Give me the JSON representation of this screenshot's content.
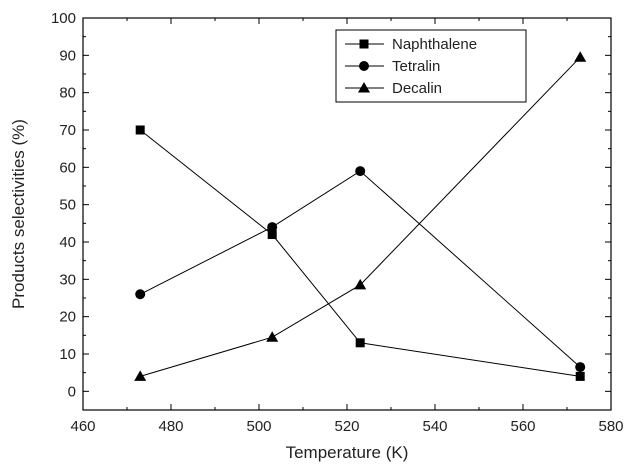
{
  "chart_data": {
    "type": "line",
    "title": "",
    "xlabel": "Temperature (K)",
    "ylabel": "Products selectivities (%)",
    "xlim": [
      460,
      580
    ],
    "ylim": [
      -5,
      100
    ],
    "x_ticks": [
      460,
      480,
      500,
      520,
      540,
      560,
      580
    ],
    "y_ticks": [
      0,
      10,
      20,
      30,
      40,
      50,
      60,
      70,
      80,
      90,
      100
    ],
    "x_tick_labels": [
      "460",
      "480",
      "500",
      "520",
      "540",
      "560",
      "580"
    ],
    "y_tick_labels": [
      "0",
      "10",
      "20",
      "30",
      "40",
      "50",
      "60",
      "70",
      "80",
      "90",
      "100"
    ],
    "x": [
      473,
      503,
      523,
      573
    ],
    "series": [
      {
        "name": "Naphthalene",
        "marker": "square",
        "values": [
          70,
          42,
          13,
          4
        ]
      },
      {
        "name": "Tetralin",
        "marker": "circle",
        "values": [
          26,
          44,
          59,
          6.5
        ]
      },
      {
        "name": "Decalin",
        "marker": "triangle",
        "values": [
          4,
          14.5,
          28.5,
          89.5
        ]
      }
    ],
    "grid": false,
    "legend_position": "top-right",
    "colors": {
      "line": "#000000",
      "marker": "#000000"
    }
  }
}
